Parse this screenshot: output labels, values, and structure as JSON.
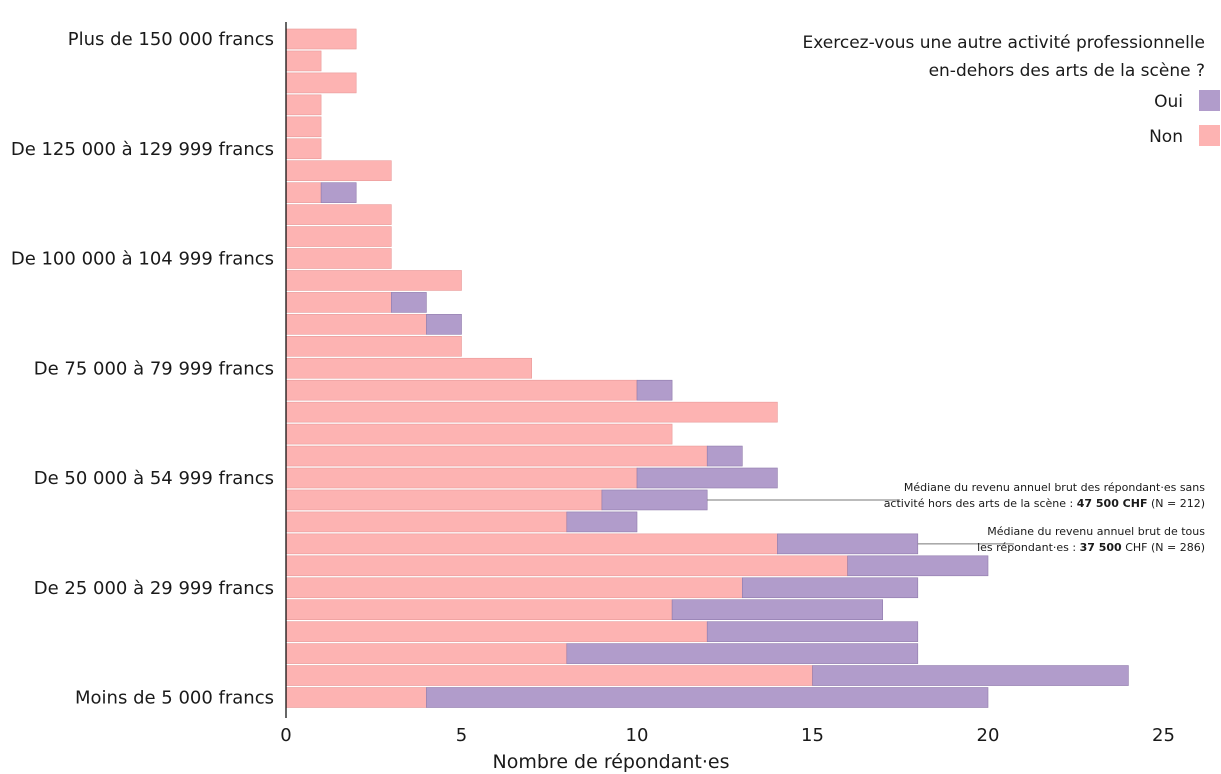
{
  "chart_data": {
    "type": "bar",
    "orientation": "horizontal",
    "stacked": true,
    "title": "",
    "xlabel": "Nombre de répondant·es",
    "ylabel": "",
    "xlim": [
      0,
      25
    ],
    "xticks": [
      "0",
      "5",
      "10",
      "15",
      "20",
      "25"
    ],
    "grid": false,
    "legend": {
      "title_line1": "Exercez-vous une autre activité professionnelle",
      "title_line2": "en-dehors des arts de la scène ?",
      "placement": "top-right",
      "entries": [
        {
          "name": "Oui",
          "color": "#b19ccb"
        },
        {
          "name": "Non",
          "color": "#fdb3b2"
        }
      ]
    },
    "categories": [
      "Plus de 150 000 francs",
      "",
      "",
      "",
      "",
      "De 125 000 à 129 999 francs",
      "",
      "",
      "",
      "",
      "De 100 000 à 104 999 francs",
      "",
      "",
      "",
      "",
      "De 75 000 à 79 999 francs",
      "",
      "",
      "",
      "",
      "De 50 000 à 54 999 francs",
      "",
      "",
      "",
      "",
      "De 25 000 à 29 999 francs",
      "",
      "",
      "",
      "",
      "Moins de 5 000 francs"
    ],
    "series": [
      {
        "name": "Non",
        "color": "#fdb3b2",
        "values": [
          2,
          1,
          2,
          1,
          1,
          1,
          3,
          1,
          3,
          3,
          3,
          5,
          3,
          4,
          5,
          7,
          10,
          14,
          11,
          12,
          10,
          9,
          8,
          14,
          16,
          13,
          11,
          12,
          8,
          15,
          4
        ]
      },
      {
        "name": "Oui",
        "color": "#b19ccb",
        "values": [
          0,
          0,
          0,
          0,
          0,
          0,
          0,
          1,
          0,
          0,
          0,
          0,
          1,
          1,
          0,
          0,
          1,
          0,
          0,
          1,
          4,
          3,
          2,
          4,
          4,
          5,
          6,
          6,
          10,
          9,
          16
        ]
      }
    ],
    "annotations": [
      {
        "line1": "Médiane du revenu annuel brut des répondant·es sans",
        "line2_pre": "activité  hors des arts de la scène : ",
        "line2_bold": "47 500 CHF",
        "line2_post": " (N = 212)",
        "category_index": 21
      },
      {
        "line1": "Médiane du revenu annuel brut de tous",
        "line2_pre": "les répondant·es : ",
        "line2_bold": "37 500",
        "line2_post": " CHF (N = 286)",
        "category_index": 23
      }
    ]
  }
}
